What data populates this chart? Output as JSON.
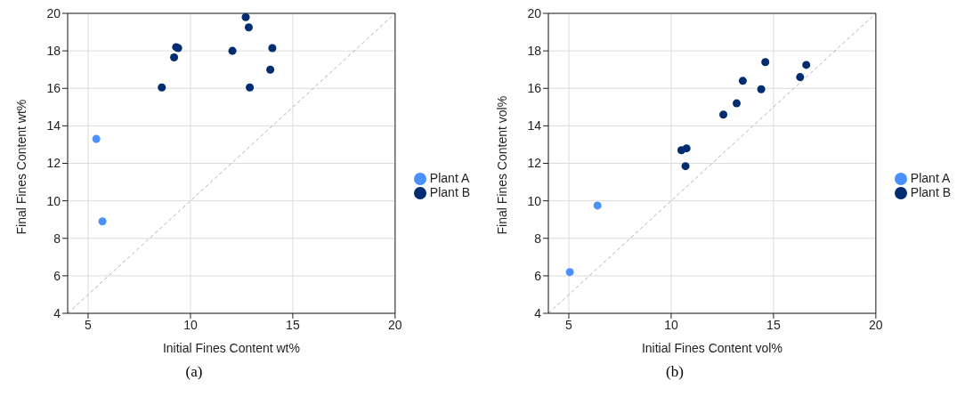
{
  "chart_data": [
    {
      "type": "scatter",
      "xlabel": "Initial Fines Content wt%",
      "ylabel": "Final Fines Content wt%",
      "annotations": [
        "(a)"
      ],
      "xlim": [
        4,
        20
      ],
      "ylim": [
        4,
        20
      ],
      "xticks": [
        5,
        10,
        15,
        20
      ],
      "yticks": [
        4,
        6,
        8,
        10,
        12,
        14,
        16,
        18,
        20
      ],
      "grid": true,
      "legend": "right",
      "marker": "circle",
      "series": [
        {
          "name": "Plant A",
          "color": "#4a90ff",
          "x": [
            5.4,
            5.7
          ],
          "values": [
            13.3,
            8.9
          ]
        },
        {
          "name": "Plant B",
          "color": "#002d72",
          "x": [
            12.7,
            12.85,
            9.3,
            9.4,
            9.2,
            8.6,
            12.05,
            14.0,
            13.9,
            12.9
          ],
          "values": [
            19.8,
            19.25,
            18.2,
            18.15,
            17.65,
            16.05,
            18.0,
            18.15,
            17.0,
            16.05
          ]
        },
        {
          "type": "line",
          "color": "#b3b3b3",
          "line_style": "dashed",
          "marker": "none",
          "x": [
            4,
            20
          ],
          "values": [
            4,
            20
          ]
        }
      ]
    },
    {
      "type": "scatter",
      "xlabel": "Initial Fines Content vol%",
      "ylabel": "Final Fines Content vol%",
      "annotations": [
        "(b)"
      ],
      "xlim": [
        4,
        20
      ],
      "ylim": [
        4,
        20
      ],
      "xticks": [
        5,
        10,
        15,
        20
      ],
      "yticks": [
        4,
        6,
        8,
        10,
        12,
        14,
        16,
        18,
        20
      ],
      "grid": true,
      "legend": "right",
      "marker": "circle",
      "series": [
        {
          "name": "Plant A",
          "color": "#4a90ff",
          "x": [
            5.05,
            6.4
          ],
          "values": [
            6.2,
            9.75
          ]
        },
        {
          "name": "Plant B",
          "color": "#002d72",
          "x": [
            10.5,
            10.75,
            10.7,
            12.55,
            13.2,
            13.5,
            14.4,
            14.6,
            16.3,
            16.6
          ],
          "values": [
            12.7,
            12.8,
            11.85,
            14.6,
            15.2,
            16.4,
            15.95,
            17.4,
            16.6,
            17.25
          ]
        },
        {
          "type": "line",
          "color": "#b3b3b3",
          "line_style": "dashed",
          "marker": "none",
          "x": [
            4,
            20
          ],
          "values": [
            4,
            20
          ]
        }
      ]
    }
  ]
}
